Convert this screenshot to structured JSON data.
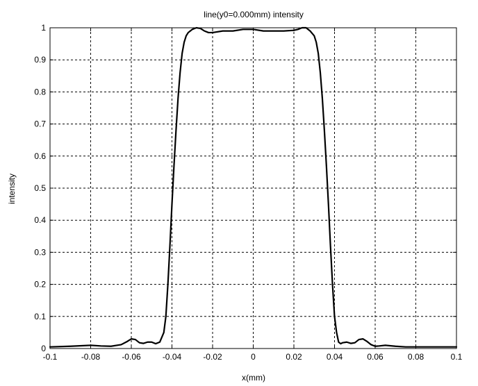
{
  "chart_data": {
    "type": "line",
    "title": "line(y0=0.000mm) intensity",
    "xlabel": "x(mm)",
    "ylabel": "intensity",
    "xlim": [
      -0.1,
      0.1
    ],
    "ylim": [
      0,
      1
    ],
    "grid": true,
    "grid_style": "dashed",
    "x_ticks": [
      -0.1,
      -0.08,
      -0.06,
      -0.04,
      -0.02,
      0,
      0.02,
      0.04,
      0.06,
      0.08,
      0.1
    ],
    "x_tick_labels": [
      "-0.1",
      "-0.08",
      "-0.06",
      "-0.04",
      "-0.02",
      "0",
      "0.02",
      "0.04",
      "0.06",
      "0.08",
      "0.1"
    ],
    "y_ticks": [
      0,
      0.1,
      0.2,
      0.3,
      0.4,
      0.5,
      0.6,
      0.7,
      0.8,
      0.9,
      1
    ],
    "y_tick_labels": [
      "0",
      "0.1",
      "0.2",
      "0.3",
      "0.4",
      "0.5",
      "0.6",
      "0.7",
      "0.8",
      "0.9",
      "1"
    ],
    "line_color": "#000000",
    "series": [
      {
        "x": [
          -0.1,
          -0.09,
          -0.08,
          -0.075,
          -0.07,
          -0.065,
          -0.062,
          -0.06,
          -0.058,
          -0.056,
          -0.054,
          -0.052,
          -0.05,
          -0.048,
          -0.046,
          -0.044,
          -0.043,
          -0.042,
          -0.041,
          -0.04,
          -0.039,
          -0.038,
          -0.037,
          -0.036,
          -0.035,
          -0.034,
          -0.033,
          -0.032,
          -0.031,
          -0.03,
          -0.028,
          -0.026,
          -0.024,
          -0.022,
          -0.02,
          -0.015,
          -0.01,
          -0.005,
          0,
          0.005,
          0.01,
          0.015,
          0.02,
          0.022,
          0.024,
          0.026,
          0.028,
          0.03,
          0.031,
          0.032,
          0.033,
          0.034,
          0.035,
          0.036,
          0.037,
          0.038,
          0.039,
          0.04,
          0.041,
          0.042,
          0.043,
          0.044,
          0.046,
          0.048,
          0.05,
          0.052,
          0.054,
          0.056,
          0.058,
          0.06,
          0.062,
          0.065,
          0.07,
          0.075,
          0.08,
          0.09,
          0.1
        ],
        "y": [
          0.005,
          0.007,
          0.01,
          0.008,
          0.007,
          0.012,
          0.022,
          0.03,
          0.028,
          0.018,
          0.016,
          0.02,
          0.02,
          0.015,
          0.02,
          0.05,
          0.1,
          0.2,
          0.32,
          0.45,
          0.57,
          0.68,
          0.78,
          0.86,
          0.92,
          0.955,
          0.975,
          0.985,
          0.99,
          0.995,
          1.0,
          0.998,
          0.99,
          0.985,
          0.985,
          0.99,
          0.99,
          0.995,
          0.995,
          0.99,
          0.99,
          0.99,
          0.992,
          0.995,
          1.0,
          1.0,
          0.99,
          0.975,
          0.955,
          0.92,
          0.86,
          0.78,
          0.68,
          0.57,
          0.45,
          0.32,
          0.2,
          0.1,
          0.05,
          0.02,
          0.015,
          0.018,
          0.02,
          0.016,
          0.018,
          0.028,
          0.03,
          0.022,
          0.012,
          0.007,
          0.008,
          0.01,
          0.007,
          0.005,
          0.005,
          0.005,
          0.005
        ]
      }
    ]
  }
}
